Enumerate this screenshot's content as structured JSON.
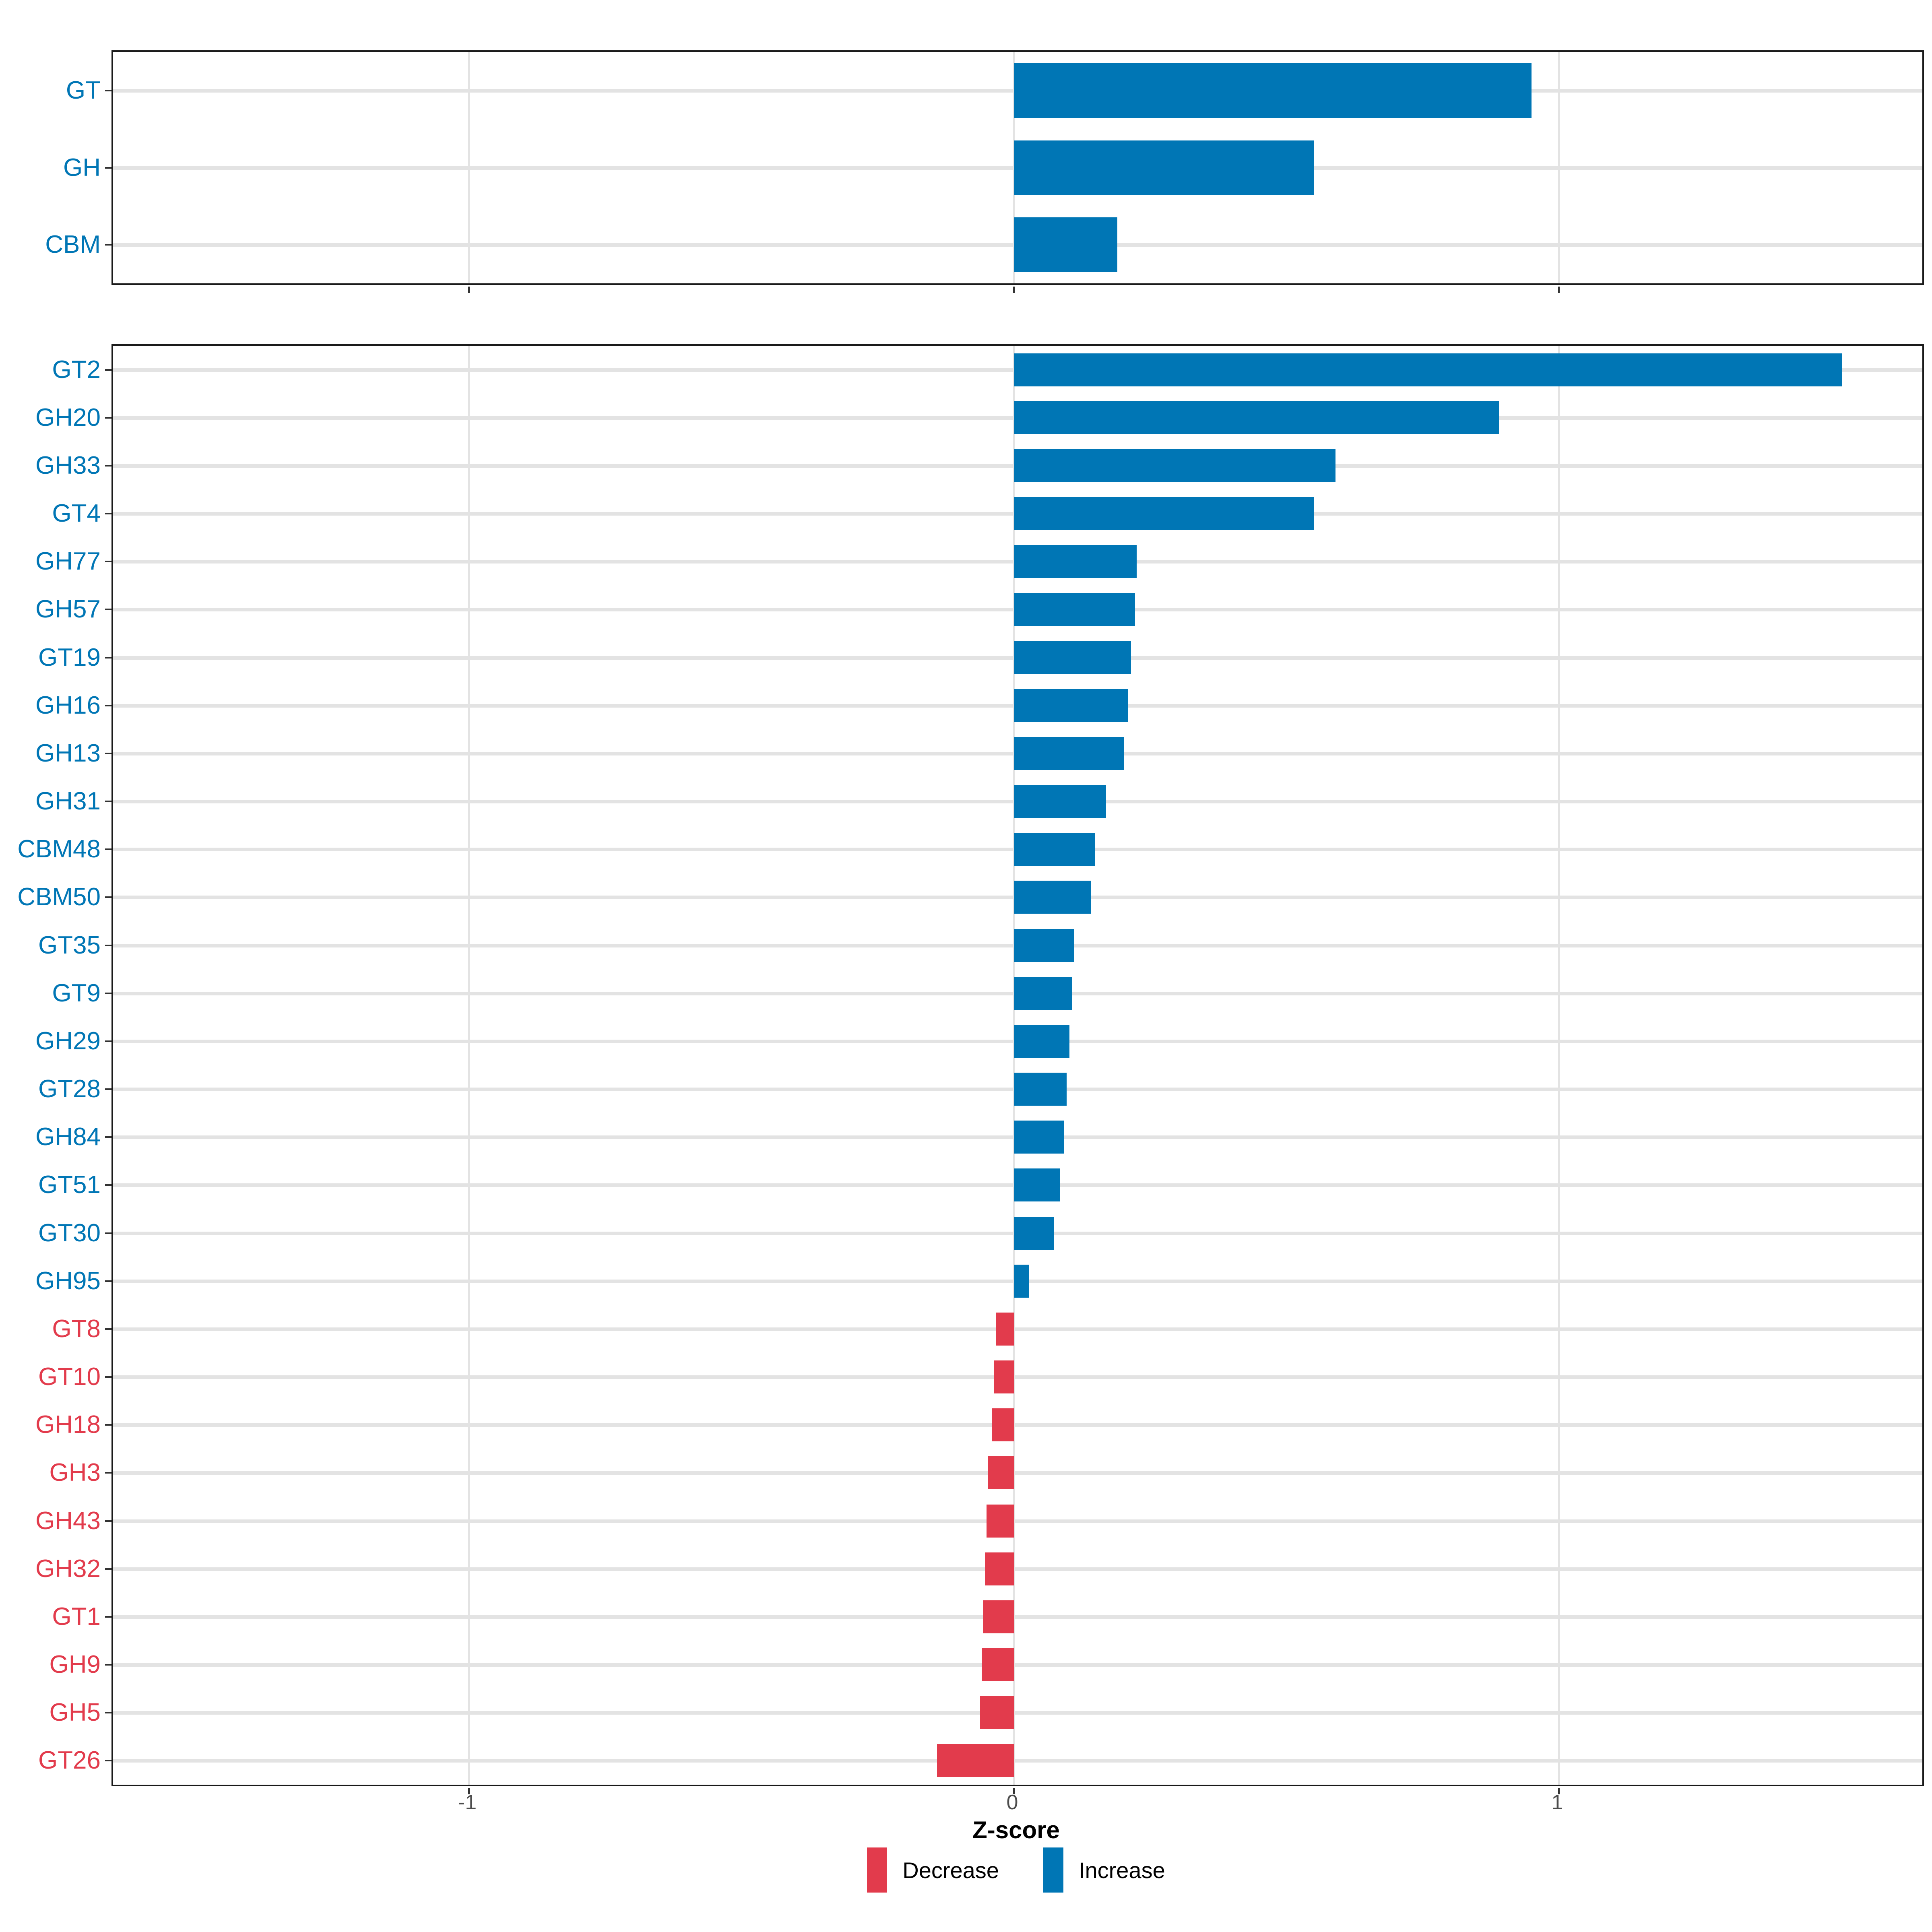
{
  "chart_data": [
    {
      "type": "bar",
      "orientation": "horizontal",
      "panel": "top",
      "title": "",
      "xlabel": "Z-score",
      "ylabel": "",
      "xlim": [
        -1.65,
        1.67
      ],
      "x_ticks": [
        -1,
        0,
        1
      ],
      "grid": true,
      "categories": [
        "GT",
        "GH",
        "CBM"
      ],
      "values": [
        0.95,
        0.55,
        0.19
      ],
      "directions": [
        "increase",
        "increase",
        "increase"
      ]
    },
    {
      "type": "bar",
      "orientation": "horizontal",
      "panel": "bottom",
      "title": "",
      "xlabel": "Z-score",
      "ylabel": "",
      "xlim": [
        -1.65,
        1.67
      ],
      "x_ticks": [
        -1,
        0,
        1
      ],
      "grid": true,
      "categories": [
        "GT2",
        "GH20",
        "GH33",
        "GT4",
        "GH77",
        "GH57",
        "GT19",
        "GH16",
        "GH13",
        "GH31",
        "CBM48",
        "CBM50",
        "GT35",
        "GT9",
        "GH29",
        "GT28",
        "GH84",
        "GT51",
        "GT30",
        "GH95",
        "GT8",
        "GT10",
        "GH18",
        "GH3",
        "GH43",
        "GH32",
        "GT1",
        "GH9",
        "GH5",
        "GT26"
      ],
      "values": [
        1.52,
        0.89,
        0.59,
        0.55,
        0.225,
        0.222,
        0.215,
        0.21,
        0.202,
        0.169,
        0.149,
        0.142,
        0.11,
        0.107,
        0.102,
        0.097,
        0.092,
        0.085,
        0.073,
        0.027,
        -0.033,
        -0.036,
        -0.04,
        -0.047,
        -0.05,
        -0.053,
        -0.057,
        -0.059,
        -0.062,
        -0.141
      ],
      "directions": [
        "increase",
        "increase",
        "increase",
        "increase",
        "increase",
        "increase",
        "increase",
        "increase",
        "increase",
        "increase",
        "increase",
        "increase",
        "increase",
        "increase",
        "increase",
        "increase",
        "increase",
        "increase",
        "increase",
        "increase",
        "decrease",
        "decrease",
        "decrease",
        "decrease",
        "decrease",
        "decrease",
        "decrease",
        "decrease",
        "decrease",
        "decrease"
      ]
    }
  ],
  "axis": {
    "title": "Z-score",
    "tick_values": [
      -1,
      0,
      1
    ],
    "tick_labels": [
      "-1",
      "0",
      "1"
    ]
  },
  "legend": {
    "items": [
      {
        "key": "decrease",
        "label": "Decrease"
      },
      {
        "key": "increase",
        "label": "Increase"
      }
    ]
  },
  "colors": {
    "increase": "#0076B5",
    "decrease": "#E23B4C",
    "grid": "#E3E3E3",
    "panel_border": "#1A1A1A",
    "tick": "#333333",
    "tick_label": "#4D4D4D",
    "axis_title": "#000000",
    "background": "#FFFFFF"
  }
}
